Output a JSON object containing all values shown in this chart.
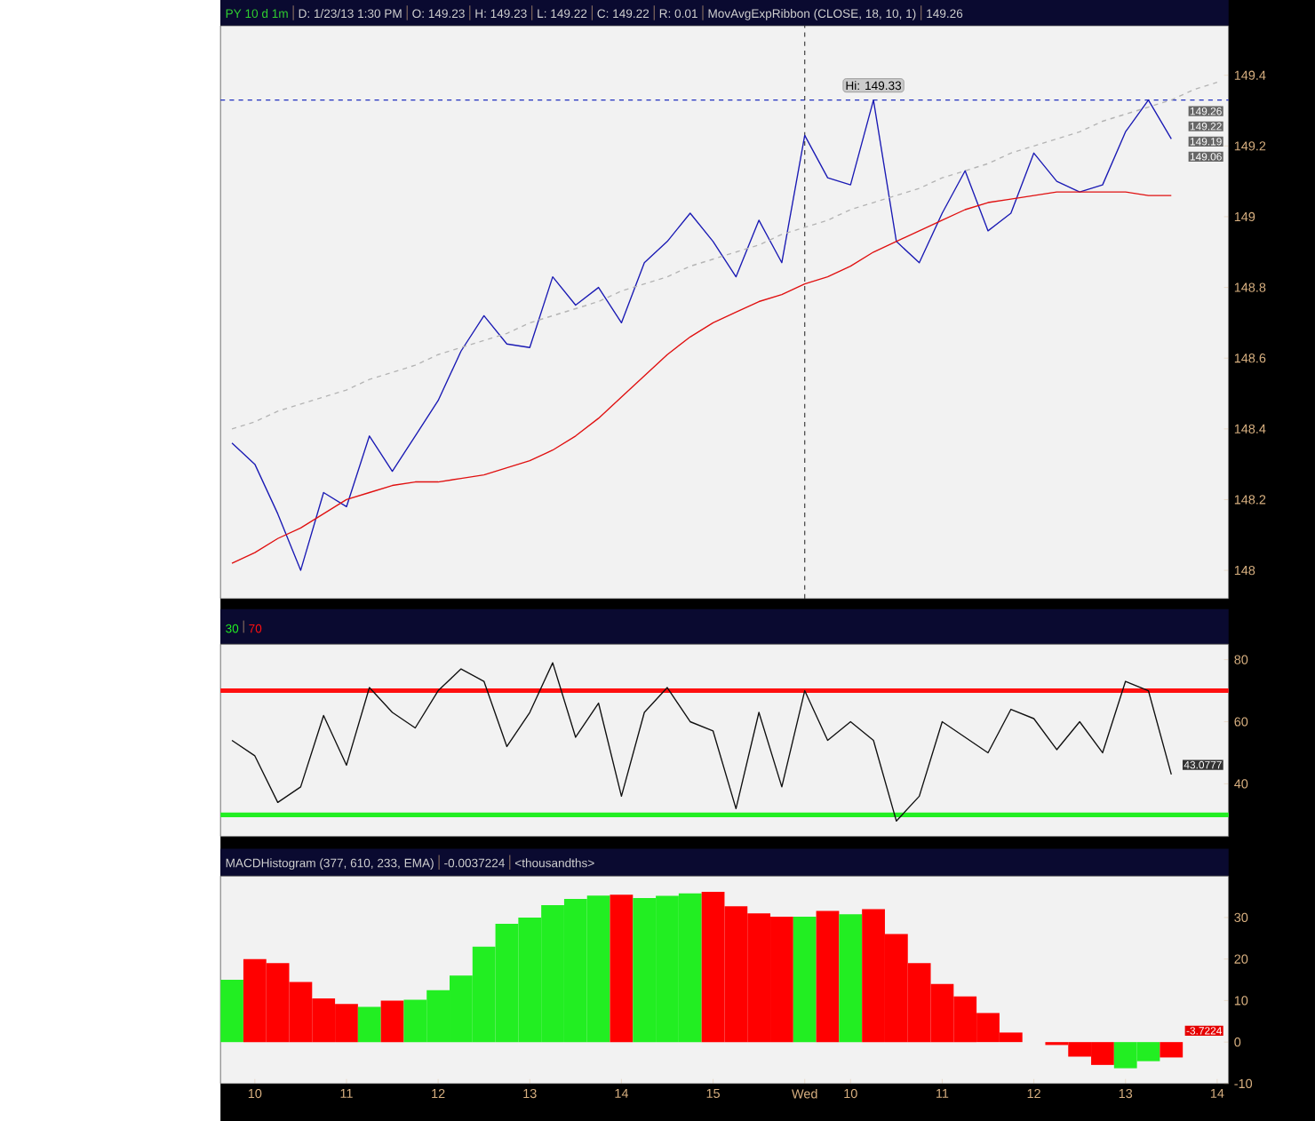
{
  "chart_data": [
    {
      "type": "line",
      "title": "PY 10 d 1m",
      "annotations": [
        "D: 1/23/13 1:30 PM",
        "O: 149.23",
        "H: 149.23",
        "L: 149.22",
        "C: 149.22",
        "R: 0.01",
        "MovAvgExpRibbon (CLOSE, 18, 10, 1)",
        "149.26",
        {
          "text": "Hi: 149.33",
          "y": 149.33
        },
        "149.26",
        "149.22",
        "149.19",
        "149.06"
      ],
      "categories": [
        null,
        "10",
        null,
        null,
        null,
        "11",
        null,
        null,
        null,
        "12",
        null,
        null,
        null,
        "13",
        null,
        null,
        null,
        "14",
        null,
        null,
        null,
        "15",
        null,
        null,
        null,
        "Wed",
        null,
        "10",
        null,
        null,
        null,
        "11",
        null,
        null,
        null,
        "12",
        null,
        null,
        null,
        "13",
        null,
        null,
        null,
        "14"
      ],
      "ylim": [
        147.92,
        149.54
      ],
      "yticks": [
        148,
        148.2,
        148.4,
        148.6,
        148.8,
        149,
        149.2,
        149.4
      ],
      "tick_labels": "y",
      "ref_lines": [
        {
          "axis": "y",
          "value": 149.33,
          "color": "#2030c0",
          "line_style": "dashed"
        },
        {
          "axis": "x",
          "value": "Wed",
          "color": "#404040",
          "line_style": "dashed"
        }
      ],
      "series": [
        {
          "color": "#1a1ab4",
          "values": [
            148.36,
            148.3,
            148.16,
            148.0,
            148.22,
            148.18,
            148.38,
            148.28,
            148.38,
            148.48,
            148.62,
            148.72,
            148.64,
            148.63,
            148.83,
            148.75,
            148.8,
            148.7,
            148.87,
            148.93,
            149.01,
            148.93,
            148.83,
            148.99,
            148.87,
            149.23,
            149.11,
            149.09,
            149.33,
            148.93,
            148.87,
            149.01,
            149.13,
            148.96,
            149.01,
            149.18,
            149.1,
            149.07,
            149.09,
            149.24,
            149.33,
            149.22,
            null,
            null
          ]
        },
        {
          "color": "#e01010",
          "values": [
            148.02,
            148.05,
            148.09,
            148.12,
            148.16,
            148.2,
            148.22,
            148.24,
            148.25,
            148.25,
            148.26,
            148.27,
            148.29,
            148.31,
            148.34,
            148.38,
            148.43,
            148.49,
            148.55,
            148.61,
            148.66,
            148.7,
            148.73,
            148.76,
            148.78,
            148.81,
            148.83,
            148.86,
            148.9,
            148.93,
            148.96,
            148.99,
            149.02,
            149.04,
            149.05,
            149.06,
            149.07,
            149.07,
            149.07,
            149.07,
            149.06,
            149.06,
            null,
            null
          ]
        },
        {
          "color": "#b4b4b4",
          "line_style": "dashed",
          "values": [
            148.4,
            148.42,
            148.45,
            148.47,
            148.49,
            148.51,
            148.54,
            148.56,
            148.58,
            148.61,
            148.63,
            148.65,
            148.67,
            148.7,
            148.72,
            148.74,
            148.76,
            148.79,
            148.81,
            148.83,
            148.86,
            148.88,
            148.9,
            148.92,
            148.95,
            148.97,
            148.99,
            149.02,
            149.04,
            149.06,
            149.08,
            149.11,
            149.13,
            149.15,
            149.18,
            149.2,
            149.22,
            149.24,
            149.27,
            149.29,
            149.31,
            149.33,
            149.36,
            149.38
          ]
        }
      ]
    },
    {
      "type": "line",
      "annotations": [
        "43.0777"
      ],
      "categories": [
        null,
        "10",
        null,
        null,
        null,
        "11",
        null,
        null,
        null,
        "12",
        null,
        null,
        null,
        "13",
        null,
        null,
        null,
        "14",
        null,
        null,
        null,
        "15",
        null,
        null,
        null,
        "Wed",
        null,
        "10",
        null,
        null,
        null,
        "11",
        null,
        null,
        null,
        "12",
        null,
        null,
        null,
        "13",
        null,
        null,
        null,
        "14"
      ],
      "ylim": [
        23,
        85
      ],
      "yticks": [
        40,
        60,
        80
      ],
      "tick_labels": "y",
      "ref_lines": [
        {
          "axis": "y",
          "value": 30,
          "label": "30",
          "color": "#22ee22",
          "line_style": "solid"
        },
        {
          "axis": "y",
          "value": 70,
          "label": "70",
          "color": "#ff1010",
          "line_style": "solid"
        }
      ],
      "series": [
        {
          "color": "#101010",
          "values": [
            54,
            49,
            34,
            39,
            62,
            46,
            71,
            63,
            58,
            70,
            77,
            73,
            52,
            63,
            79,
            55,
            66,
            36,
            63,
            71,
            60,
            57,
            32,
            63,
            39,
            70,
            54,
            60,
            54,
            28,
            36,
            60,
            55,
            50,
            64,
            61,
            51,
            60,
            50,
            73,
            70,
            43,
            null,
            null
          ]
        }
      ]
    },
    {
      "type": "bar",
      "annotations": [
        "MACDHistogram (377, 610, 233, EMA)",
        "-0.0037224",
        "<thousandths>",
        "-3.7224"
      ],
      "categories": [
        null,
        "10",
        null,
        null,
        null,
        "11",
        null,
        null,
        null,
        "12",
        null,
        null,
        null,
        "13",
        null,
        null,
        null,
        "14",
        null,
        null,
        null,
        "15",
        null,
        null,
        null,
        "Wed",
        null,
        "10",
        null,
        null,
        null,
        "11",
        null,
        null,
        null,
        "12",
        null,
        null,
        null,
        "13",
        null,
        null,
        null,
        "14"
      ],
      "ylim": [
        -10,
        40
      ],
      "yticks": [
        -10,
        0,
        10,
        20,
        30
      ],
      "values": [
        15,
        20,
        19,
        14.5,
        10.5,
        9.2,
        8.5,
        10,
        10.2,
        12.5,
        16,
        23,
        28.5,
        30,
        33,
        34.5,
        35.3,
        35.5,
        34.7,
        35.2,
        35.8,
        36.2,
        32.7,
        31,
        30.2,
        30.2,
        31.6,
        30.8,
        32,
        26,
        19,
        14,
        11,
        7,
        2.3,
        0,
        -0.7,
        -3.5,
        -5.5,
        -6.3,
        -4.6,
        -3.7,
        null,
        null
      ],
      "colors": [
        "#22ee22",
        "#ff0000",
        "#ff0000",
        "#ff0000",
        "#ff0000",
        "#ff0000",
        "#22ee22",
        "#ff0000",
        "#22ee22",
        "#22ee22",
        "#22ee22",
        "#22ee22",
        "#22ee22",
        "#22ee22",
        "#22ee22",
        "#22ee22",
        "#22ee22",
        "#ff0000",
        "#22ee22",
        "#22ee22",
        "#22ee22",
        "#ff0000",
        "#ff0000",
        "#ff0000",
        "#ff0000",
        "#22ee22",
        "#ff0000",
        "#22ee22",
        "#ff0000",
        "#ff0000",
        "#ff0000",
        "#ff0000",
        "#ff0000",
        "#ff0000",
        "#ff0000",
        "#ff0000",
        "#ff0000",
        "#ff0000",
        "#ff0000",
        "#22ee22",
        "#22ee22",
        "#ff0000",
        null,
        null
      ]
    }
  ]
}
